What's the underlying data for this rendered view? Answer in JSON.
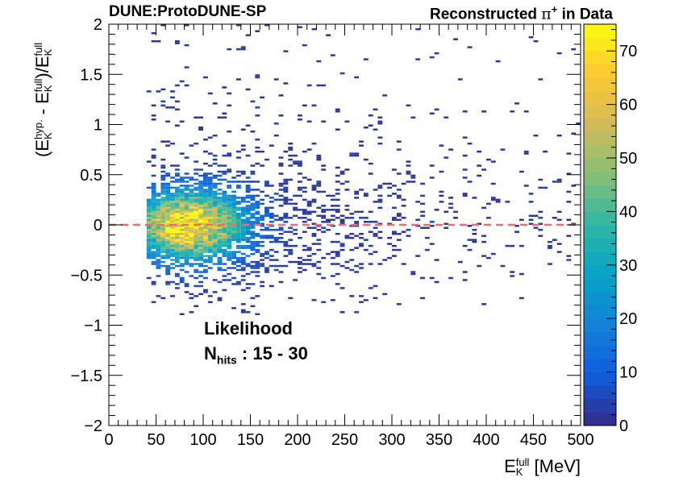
{
  "chart_data": {
    "type": "heatmap",
    "experiment_label": "DUNE:ProtoDUNE-SP",
    "title": "Reconstructed π⁺ in Data",
    "title_parts": {
      "prefix": "Reconstructed ",
      "particle": "π",
      "charge": "+",
      "suffix": " in Data"
    },
    "xlabel": {
      "base": "E",
      "sup": "full",
      "sub": "K",
      "unit": " [MeV]"
    },
    "ylabel": {
      "open": "(E",
      "sup1": "hyp.",
      "sub1": "K",
      "mid": " - E",
      "sup2": "full",
      "sub2": "K",
      "div": ")/E",
      "sup3": "full",
      "sub3": "K"
    },
    "xlim": [
      0,
      500
    ],
    "ylim": [
      -2,
      2
    ],
    "zlim": [
      0,
      75
    ],
    "x_ticks": [
      "0",
      "50",
      "100",
      "150",
      "200",
      "250",
      "300",
      "350",
      "400",
      "450",
      "500"
    ],
    "y_ticks": [
      "−2",
      "−1.5",
      "−1",
      "−0.5",
      "0",
      "0.5",
      "1",
      "1.5",
      "2"
    ],
    "z_ticks": [
      "0",
      "10",
      "20",
      "30",
      "40",
      "50",
      "60",
      "70"
    ],
    "annotation": {
      "method": "Likelihood",
      "nhits_label": "N",
      "nhits_sub": "hits",
      "nhits_range": " : 15 - 30"
    },
    "reference_line": {
      "y": 0,
      "color": "#ff6666",
      "style": "dashed"
    },
    "bins": {
      "x_width": 5,
      "y_width": 0.02
    },
    "distribution": {
      "peak_x": 85,
      "peak_y": 0.0,
      "peak_counts": 72,
      "core_x_range": [
        40,
        250
      ],
      "core_y_range": [
        -0.7,
        0.7
      ],
      "tail_x_range": [
        250,
        500
      ],
      "tail_y_range": [
        -0.9,
        2.0
      ]
    },
    "colormap": [
      "#352a87",
      "#0f5cdd",
      "#1481d6",
      "#06a4ca",
      "#2eb7a4",
      "#87bf77",
      "#d1bb59",
      "#fec832",
      "#f9fb0e"
    ]
  }
}
